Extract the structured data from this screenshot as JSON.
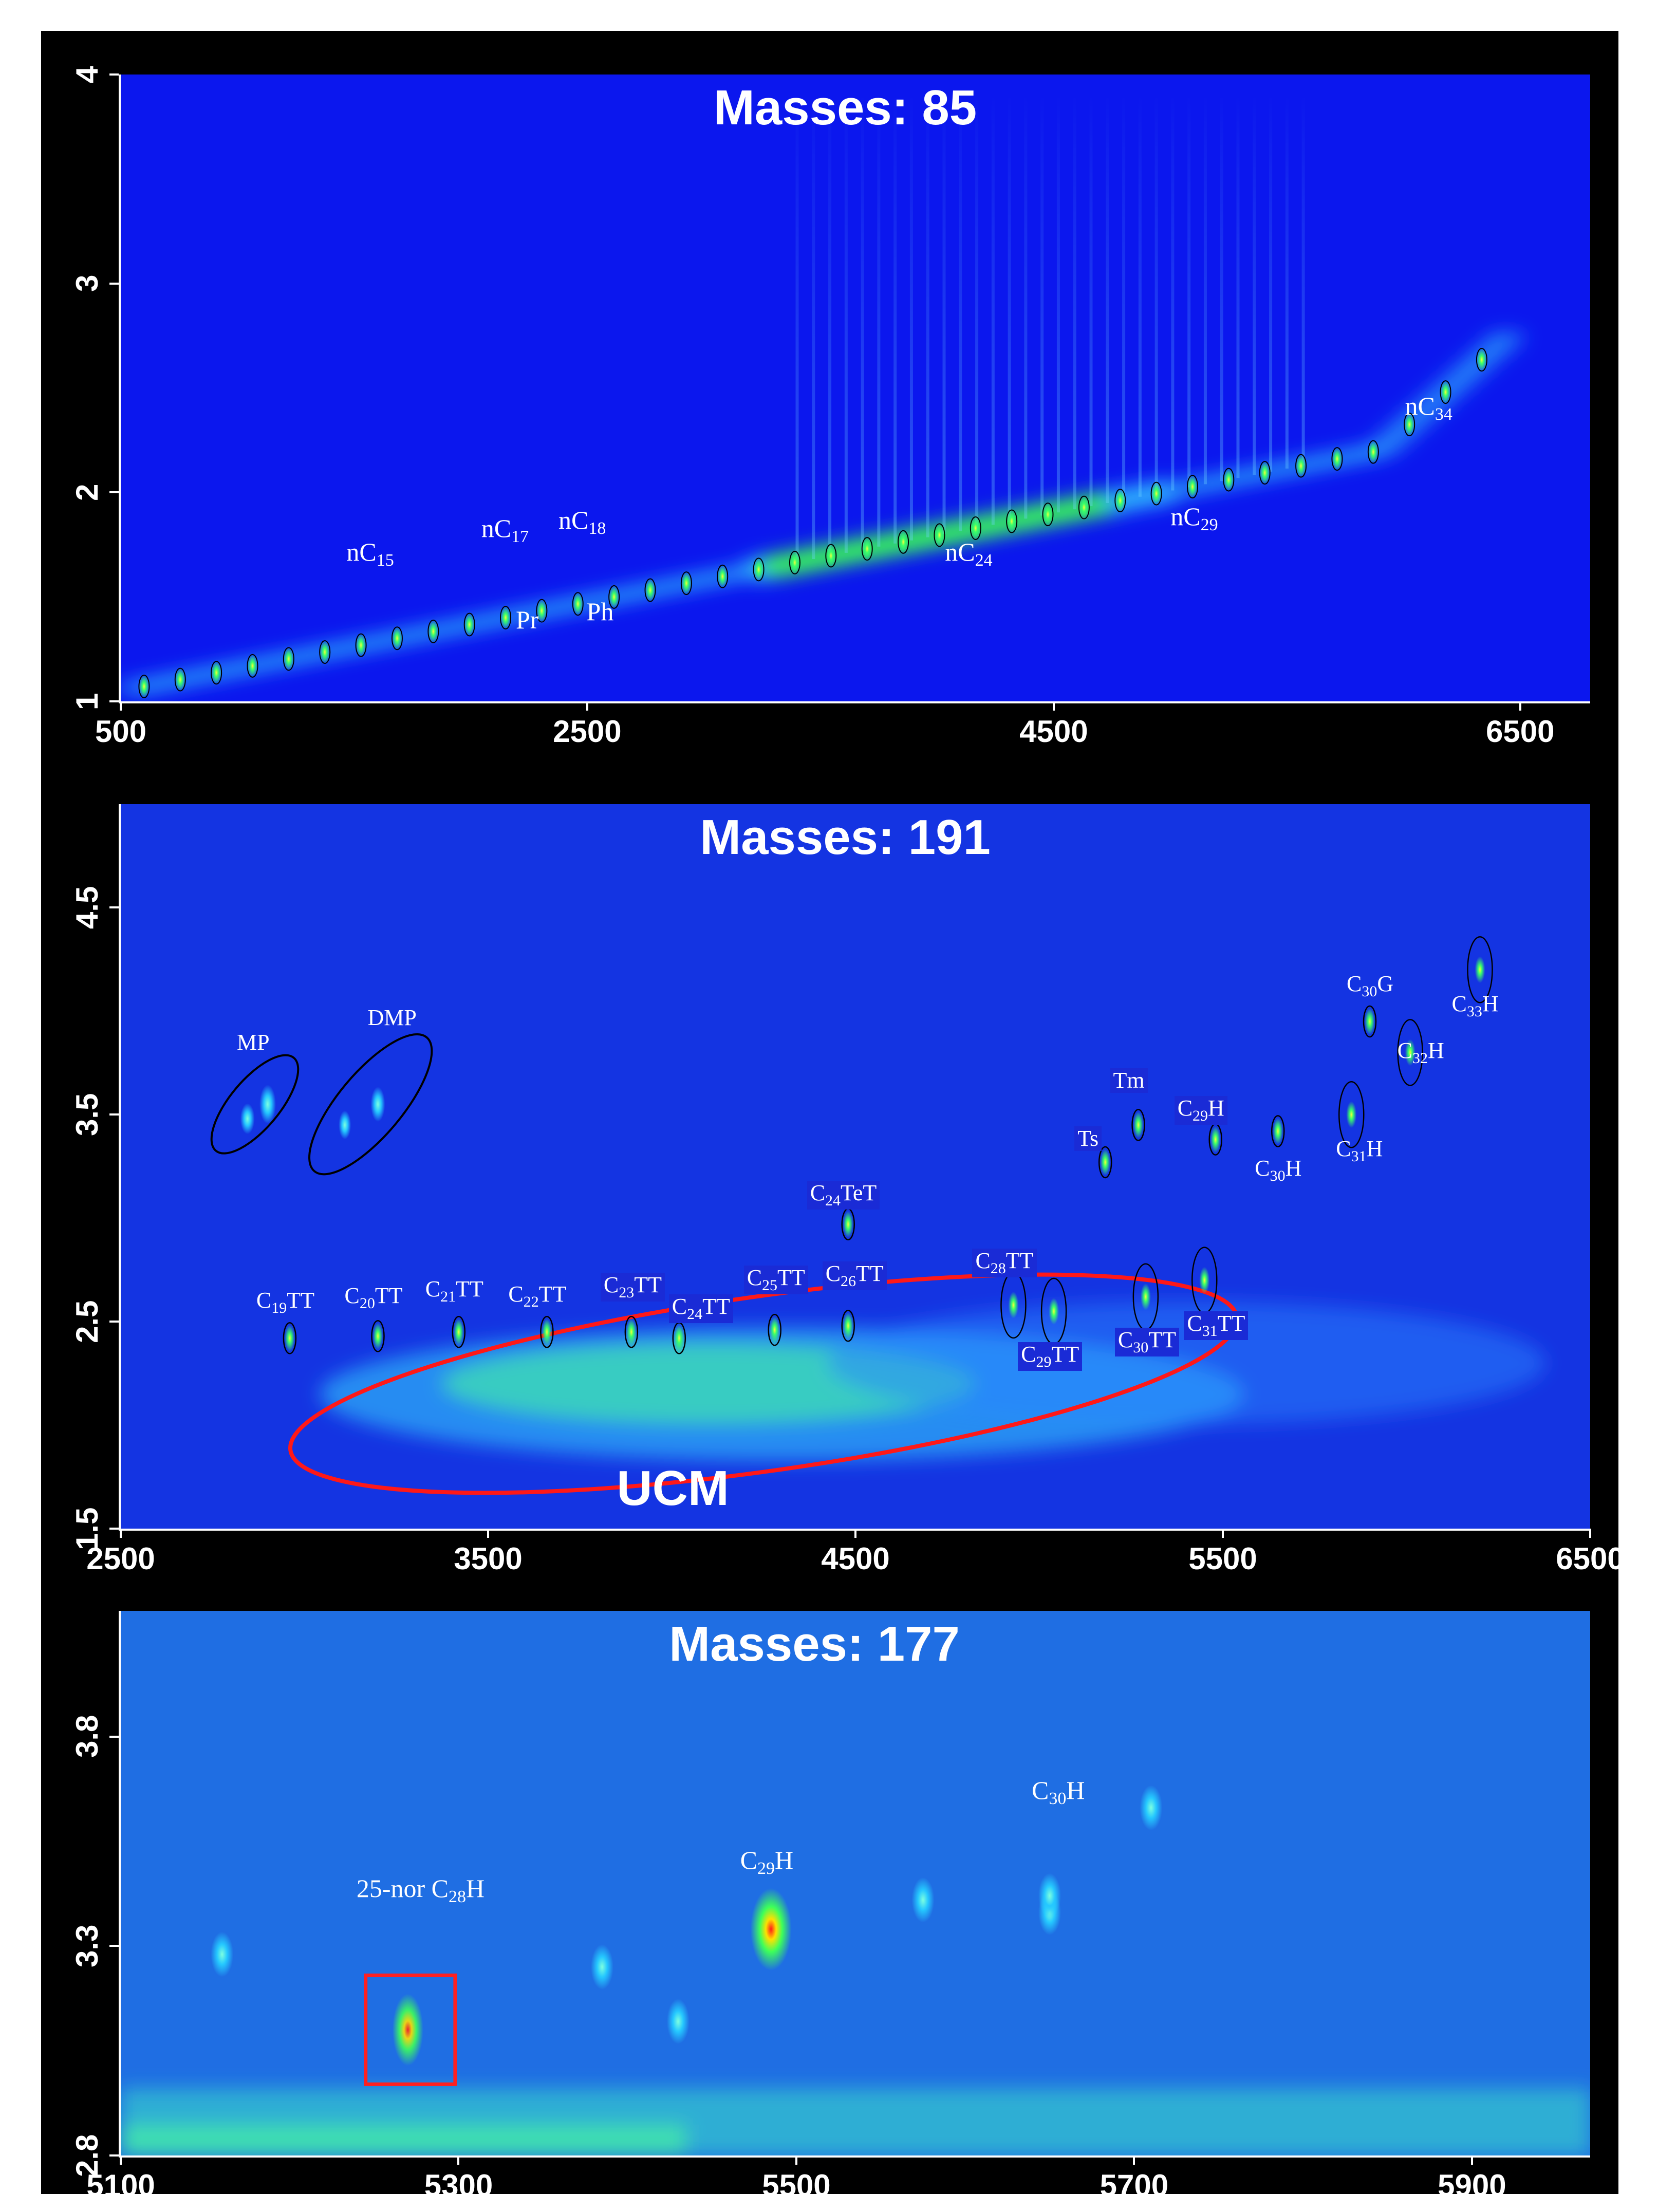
{
  "chart_data": [
    {
      "type": "heatmap",
      "title": "Masses: 85",
      "xlim": [
        500,
        6800
      ],
      "ylim": [
        1,
        4
      ],
      "xticks": [
        500,
        2500,
        4500,
        6500
      ],
      "yticks": [
        1,
        2,
        3,
        4
      ],
      "peaks": [
        {
          "label": "nC15",
          "base": "nC",
          "sub": "15",
          "x": 1600,
          "y": 1.52
        },
        {
          "label": "nC17",
          "base": "nC",
          "sub": "17",
          "x": 2200,
          "y": 1.62
        },
        {
          "label": "nC18",
          "base": "nC",
          "sub": "18",
          "x": 2520,
          "y": 1.66
        },
        {
          "label": "Pr",
          "base": "Pr",
          "sub": "",
          "x": 2260,
          "y": 1.55
        },
        {
          "label": "Ph",
          "base": "Ph",
          "sub": "",
          "x": 2530,
          "y": 1.59
        },
        {
          "label": "nC24",
          "base": "nC",
          "sub": "24",
          "x": 4100,
          "y": 1.85
        },
        {
          "label": "nC29",
          "base": "nC",
          "sub": "29",
          "x": 5100,
          "y": 2.02
        },
        {
          "label": "nC34",
          "base": "nC",
          "sub": "34",
          "x": 6050,
          "y": 2.45
        }
      ]
    },
    {
      "type": "heatmap",
      "title": "Masses: 191",
      "xlim": [
        2500,
        6500
      ],
      "ylim": [
        1.5,
        5
      ],
      "xticks": [
        2500,
        3500,
        4500,
        5500,
        6500
      ],
      "yticks": [
        1.5,
        2.5,
        3.5,
        4.5
      ],
      "annotation": "UCM",
      "peaks": [
        {
          "label": "MP",
          "base": "MP",
          "sub": "",
          "post": "",
          "x": 2900,
          "y": 3.58,
          "boxed": false
        },
        {
          "label": "DMP",
          "base": "DMP",
          "sub": "",
          "post": "",
          "x": 3200,
          "y": 3.6,
          "boxed": false
        },
        {
          "label": "C19TT",
          "base": "C",
          "sub": "19",
          "post": "TT",
          "x": 2960,
          "y": 2.42,
          "boxed": false
        },
        {
          "label": "C20TT",
          "base": "C",
          "sub": "20",
          "post": "TT",
          "x": 3200,
          "y": 2.43,
          "boxed": false
        },
        {
          "label": "C21TT",
          "base": "C",
          "sub": "21",
          "post": "TT",
          "x": 3420,
          "y": 2.45,
          "boxed": false
        },
        {
          "label": "C22TT",
          "base": "C",
          "sub": "22",
          "post": "TT",
          "x": 3660,
          "y": 2.45,
          "boxed": false
        },
        {
          "label": "C23TT",
          "base": "C",
          "sub": "23",
          "post": "TT",
          "x": 3890,
          "y": 2.45,
          "boxed": true
        },
        {
          "label": "C24TT",
          "base": "C",
          "sub": "24",
          "post": "TT",
          "x": 4020,
          "y": 2.42,
          "boxed": true
        },
        {
          "label": "C25TT",
          "base": "C",
          "sub": "25",
          "post": "TT",
          "x": 4280,
          "y": 2.46,
          "boxed": true
        },
        {
          "label": "C26TT",
          "base": "C",
          "sub": "26",
          "post": "TT",
          "x": 4480,
          "y": 2.48,
          "boxed": true
        },
        {
          "label": "C24TeT",
          "base": "C",
          "sub": "24",
          "post": "TeT",
          "x": 4480,
          "y": 2.97,
          "boxed": true
        },
        {
          "label": "C28TT",
          "base": "C",
          "sub": "28",
          "post": "TT",
          "x": 4930,
          "y": 2.58,
          "boxed": true
        },
        {
          "label": "C29TT",
          "base": "C",
          "sub": "29",
          "post": "TT",
          "x": 5040,
          "y": 2.55,
          "boxed": true
        },
        {
          "label": "C30TT",
          "base": "C",
          "sub": "30",
          "post": "TT",
          "x": 5290,
          "y": 2.62,
          "boxed": true
        },
        {
          "label": "C31TT",
          "base": "C",
          "sub": "31",
          "post": "TT",
          "x": 5450,
          "y": 2.7,
          "boxed": true
        },
        {
          "label": "Ts",
          "base": "Ts",
          "sub": "",
          "post": "",
          "x": 5180,
          "y": 3.27,
          "boxed": true
        },
        {
          "label": "Tm",
          "base": "Tm",
          "sub": "",
          "post": "",
          "x": 5270,
          "y": 3.45,
          "boxed": true
        },
        {
          "label": "C29H",
          "base": "C",
          "sub": "29",
          "post": "H",
          "x": 5480,
          "y": 3.38,
          "boxed": true
        },
        {
          "label": "C30H",
          "base": "C",
          "sub": "30",
          "post": "H",
          "x": 5650,
          "y": 3.42,
          "boxed": false
        },
        {
          "label": "C31H",
          "base": "C",
          "sub": "31",
          "post": "H",
          "x": 5850,
          "y": 3.5,
          "boxed": false
        },
        {
          "label": "C32H",
          "base": "C",
          "sub": "32",
          "post": "H",
          "x": 6010,
          "y": 3.8,
          "boxed": false
        },
        {
          "label": "C30G",
          "base": "C",
          "sub": "30",
          "post": "G",
          "x": 5900,
          "y": 3.95,
          "boxed": false
        },
        {
          "label": "C33H",
          "base": "C",
          "sub": "33",
          "post": "H",
          "x": 6200,
          "y": 4.2,
          "boxed": false
        }
      ]
    },
    {
      "type": "heatmap",
      "title": "Masses: 177",
      "xlim": [
        5100,
        5970
      ],
      "ylim": [
        2.8,
        4.1
      ],
      "xticks": [
        5100,
        5300,
        5500,
        5700,
        5900
      ],
      "yticks": [
        2.8,
        3.3,
        3.8
      ],
      "peaks": [
        {
          "label": "25-nor C28H",
          "base": "25-nor C",
          "sub": "28",
          "post": "H",
          "x": 5270,
          "y": 3.1
        },
        {
          "label": "C29H",
          "base": "C",
          "sub": "29",
          "post": "H",
          "x": 5485,
          "y": 3.34
        },
        {
          "label": "C30H",
          "base": "C",
          "sub": "30",
          "post": "H",
          "x": 5650,
          "y": 3.42
        }
      ]
    }
  ]
}
